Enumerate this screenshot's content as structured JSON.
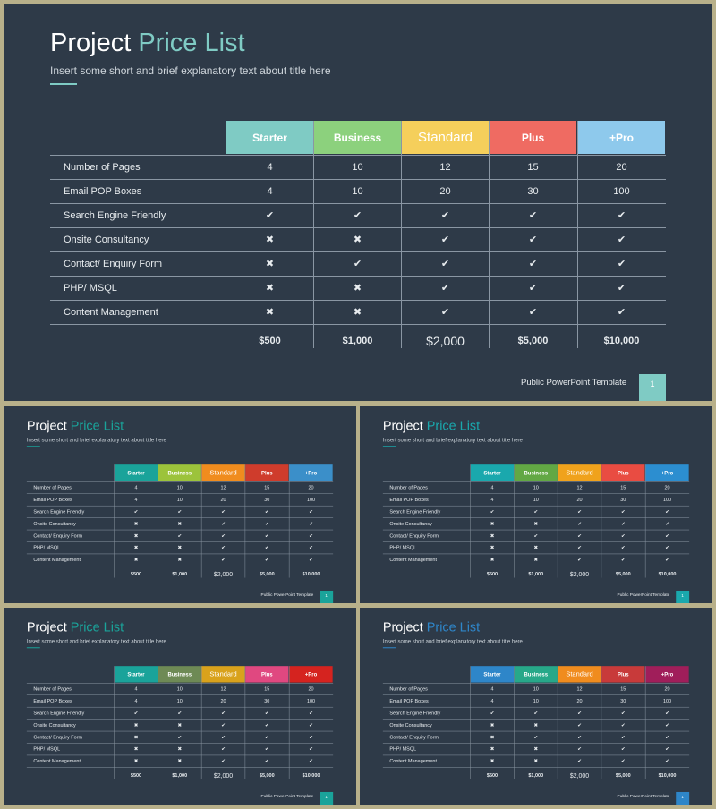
{
  "slide": {
    "title_word1": "Project",
    "title_word2": "Price List",
    "subtitle": "Insert some short and brief explanatory text about title here",
    "footer": "Public PowerPoint Template",
    "page_number": "1"
  },
  "table": {
    "plans": [
      "Starter",
      "Business",
      "Standard",
      "Plus",
      "+Pro"
    ],
    "rows": [
      {
        "label": "Number of Pages",
        "values": [
          "4",
          "10",
          "12",
          "15",
          "20"
        ]
      },
      {
        "label": "Email POP Boxes",
        "values": [
          "4",
          "10",
          "20",
          "30",
          "100"
        ]
      },
      {
        "label": "Search Engine Friendly",
        "values": [
          "✔",
          "✔",
          "✔",
          "✔",
          "✔"
        ]
      },
      {
        "label": "Onsite Consultancy",
        "values": [
          "✖",
          "✖",
          "✔",
          "✔",
          "✔"
        ]
      },
      {
        "label": "Contact/ Enquiry Form",
        "values": [
          "✖",
          "✔",
          "✔",
          "✔",
          "✔"
        ]
      },
      {
        "label": "PHP/ MSQL",
        "values": [
          "✖",
          "✖",
          "✔",
          "✔",
          "✔"
        ]
      },
      {
        "label": "Content Management",
        "values": [
          "✖",
          "✖",
          "✔",
          "✔",
          "✔"
        ]
      }
    ],
    "prices": [
      "$500",
      "$1,000",
      "$2,000",
      "$5,000",
      "$10,000"
    ]
  },
  "variants": [
    {
      "accent": "#7fcbc4",
      "page_box": "#7fcbc4",
      "headers": [
        "#7fcbc4",
        "#8cd17d",
        "#f5cf5b",
        "#ef6b62",
        "#8ec9ec"
      ]
    },
    {
      "accent": "#1aa39a",
      "page_box": "#1aa39a",
      "headers": [
        "#1aa39a",
        "#9cc33b",
        "#f08c1e",
        "#cf3c2c",
        "#3b8fc9"
      ]
    },
    {
      "accent": "#1aa8ad",
      "page_box": "#1aa8ad",
      "headers": [
        "#1aa8ad",
        "#62a844",
        "#f0a21c",
        "#e94c42",
        "#2c8ed0"
      ]
    },
    {
      "accent": "#1aa39a",
      "page_box": "#1aa39a",
      "headers": [
        "#1aa39a",
        "#6e8a55",
        "#d9a21c",
        "#e04880",
        "#d5231f"
      ]
    },
    {
      "accent": "#2e86c9",
      "page_box": "#2e86c9",
      "headers": [
        "#2e86c9",
        "#27a889",
        "#f08c1e",
        "#c83a3a",
        "#a01e5a"
      ]
    }
  ]
}
